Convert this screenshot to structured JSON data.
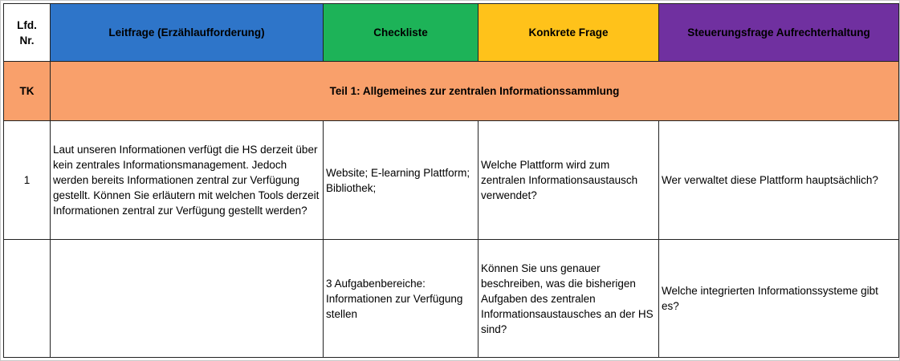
{
  "header": {
    "col_nr": "Lfd.\nNr.",
    "col_leitfrage": "Leitfrage (Erzählaufforderung)",
    "col_checkliste": "Checkliste",
    "col_konkret": "Konkrete Frage",
    "col_steuerung": "Steuerungsfrage Aufrechterhaltung"
  },
  "section": {
    "code": "TK",
    "title": "Teil 1: Allgemeines zur zentralen Informationssammlung"
  },
  "rows": [
    {
      "nr": "1",
      "leitfrage": "Laut unseren Informationen verfügt die HS derzeit über kein zentrales Informationsmanagement. Jedoch werden bereits Informationen zentral zur Verfügung gestellt. Können Sie erläutern mit welchen Tools derzeit Informationen zentral zur Verfügung gestellt werden?",
      "checkliste": "Website; E-learning Plattform; Bibliothek;",
      "konkret": "Welche Plattform wird zum zentralen Informationsaustausch verwendet?",
      "steuerung": "Wer verwaltet diese Plattform hauptsächlich?"
    },
    {
      "nr": "",
      "leitfrage": "",
      "checkliste": "3 Aufgabenbereiche: Informationen zur Verfügung stellen",
      "konkret": "Können Sie uns genauer beschreiben, was die bisherigen Aufgaben des zentralen Informationsaustausches an der HS sind?",
      "steuerung": "Welche integrierten Informationssysteme gibt es?"
    }
  ],
  "colors": {
    "leitfrage": "#2e75c9",
    "checkliste": "#1db358",
    "konkret": "#ffc21a",
    "steuerung": "#7030a0",
    "section": "#f9a06b"
  }
}
